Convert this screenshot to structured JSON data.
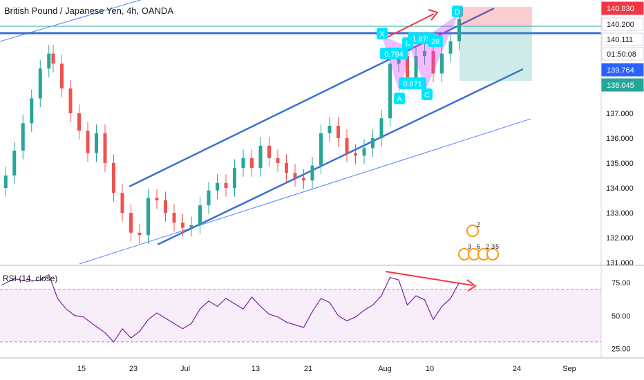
{
  "chart_data": {
    "type": "candlestick",
    "title": "British Pound / Japanese Yen, 4h, OANDA",
    "price_axis": {
      "ticks": [
        "131.000",
        "132.000",
        "133.000",
        "134.000",
        "135.000",
        "136.000",
        "137.000"
      ],
      "ylim": [
        131.0,
        141.0
      ]
    },
    "price_badges": [
      {
        "value": "140.830",
        "color": "#f23645"
      },
      {
        "value": "140.200",
        "color": "#ffffff"
      },
      {
        "value": "140.111",
        "color": "#ffffff"
      },
      {
        "value": "01:50:08",
        "color": "#ffffff"
      },
      {
        "value": "139.764",
        "color": "#2962ff"
      },
      {
        "value": "138.045",
        "color": "#26a69a"
      }
    ],
    "time_axis": [
      "15",
      "23",
      "Jul",
      "13",
      "21",
      "Aug",
      "10",
      "24",
      "Sep"
    ],
    "candles": [
      {
        "t": 1,
        "c": 134.5
      },
      {
        "t": 3,
        "c": 135.5
      },
      {
        "t": 5,
        "c": 136.6
      },
      {
        "t": 7,
        "c": 137.6
      },
      {
        "t": 9,
        "c": 138.8
      },
      {
        "t": 11,
        "c": 139.4
      },
      {
        "t": 12,
        "c": 139.0
      },
      {
        "t": 14,
        "c": 138.0
      },
      {
        "t": 16,
        "c": 137.0
      },
      {
        "t": 18,
        "c": 136.3
      },
      {
        "t": 20,
        "c": 135.4
      },
      {
        "t": 22,
        "c": 136.2
      },
      {
        "t": 24,
        "c": 135.0
      },
      {
        "t": 26,
        "c": 133.8
      },
      {
        "t": 28,
        "c": 133.0
      },
      {
        "t": 30,
        "c": 132.2
      },
      {
        "t": 32,
        "c": 132.1
      },
      {
        "t": 34,
        "c": 133.6
      },
      {
        "t": 36,
        "c": 133.5
      },
      {
        "t": 38,
        "c": 133.0
      },
      {
        "t": 40,
        "c": 132.6
      },
      {
        "t": 42,
        "c": 132.4
      },
      {
        "t": 44,
        "c": 132.5
      },
      {
        "t": 46,
        "c": 133.3
      },
      {
        "t": 48,
        "c": 133.9
      },
      {
        "t": 50,
        "c": 134.2
      },
      {
        "t": 52,
        "c": 134.0
      },
      {
        "t": 54,
        "c": 134.8
      },
      {
        "t": 56,
        "c": 135.2
      },
      {
        "t": 58,
        "c": 134.8
      },
      {
        "t": 60,
        "c": 135.7
      },
      {
        "t": 62,
        "c": 135.2
      },
      {
        "t": 64,
        "c": 135.0
      },
      {
        "t": 66,
        "c": 134.6
      },
      {
        "t": 68,
        "c": 134.4
      },
      {
        "t": 70,
        "c": 134.3
      },
      {
        "t": 72,
        "c": 134.9
      },
      {
        "t": 74,
        "c": 136.2
      },
      {
        "t": 76,
        "c": 136.5
      },
      {
        "t": 78,
        "c": 136.0
      },
      {
        "t": 80,
        "c": 135.4
      },
      {
        "t": 82,
        "c": 135.3
      },
      {
        "t": 84,
        "c": 135.6
      },
      {
        "t": 86,
        "c": 136.0
      },
      {
        "t": 88,
        "c": 136.8
      },
      {
        "t": 90,
        "c": 139.0
      },
      {
        "t": 92,
        "c": 139.3
      },
      {
        "t": 94,
        "c": 138.4
      },
      {
        "t": 96,
        "c": 139.3
      },
      {
        "t": 98,
        "c": 139.5
      },
      {
        "t": 100,
        "c": 138.6
      },
      {
        "t": 102,
        "c": 139.4
      },
      {
        "t": 104,
        "c": 139.9
      },
      {
        "t": 106,
        "c": 140.8
      }
    ],
    "rsi": {
      "label": "RSI (14, close)",
      "ticks": [
        "25.00",
        "50.00",
        "75.00"
      ],
      "band": [
        30,
        70
      ],
      "ylim": [
        20,
        85
      ],
      "values": [
        [
          0,
          73
        ],
        [
          3,
          78
        ],
        [
          6,
          76
        ],
        [
          9,
          77
        ],
        [
          11,
          81
        ],
        [
          13,
          63
        ],
        [
          15,
          55
        ],
        [
          17,
          50
        ],
        [
          19,
          49
        ],
        [
          21,
          44
        ],
        [
          24,
          37
        ],
        [
          26,
          30
        ],
        [
          28,
          40
        ],
        [
          30,
          33
        ],
        [
          32,
          38
        ],
        [
          34,
          47
        ],
        [
          36,
          52
        ],
        [
          38,
          48
        ],
        [
          40,
          44
        ],
        [
          42,
          40
        ],
        [
          44,
          44
        ],
        [
          46,
          55
        ],
        [
          48,
          61
        ],
        [
          50,
          57
        ],
        [
          52,
          63
        ],
        [
          54,
          59
        ],
        [
          56,
          55
        ],
        [
          58,
          64
        ],
        [
          60,
          57
        ],
        [
          62,
          51
        ],
        [
          64,
          49
        ],
        [
          66,
          45
        ],
        [
          68,
          43
        ],
        [
          70,
          41
        ],
        [
          72,
          53
        ],
        [
          74,
          63
        ],
        [
          76,
          60
        ],
        [
          78,
          50
        ],
        [
          80,
          46
        ],
        [
          82,
          49
        ],
        [
          84,
          54
        ],
        [
          86,
          58
        ],
        [
          88,
          65
        ],
        [
          90,
          79
        ],
        [
          92,
          77
        ],
        [
          94,
          58
        ],
        [
          96,
          65
        ],
        [
          98,
          62
        ],
        [
          100,
          47
        ],
        [
          102,
          57
        ],
        [
          104,
          63
        ],
        [
          106,
          75
        ]
      ]
    },
    "pattern_labels": [
      "X",
      "A",
      "B",
      "C",
      "D"
    ],
    "ratios": [
      "0.794",
      "0.871",
      "1.679",
      "28"
    ],
    "event_markers": [
      "2",
      "3",
      "6",
      "2",
      "3",
      "5"
    ]
  }
}
